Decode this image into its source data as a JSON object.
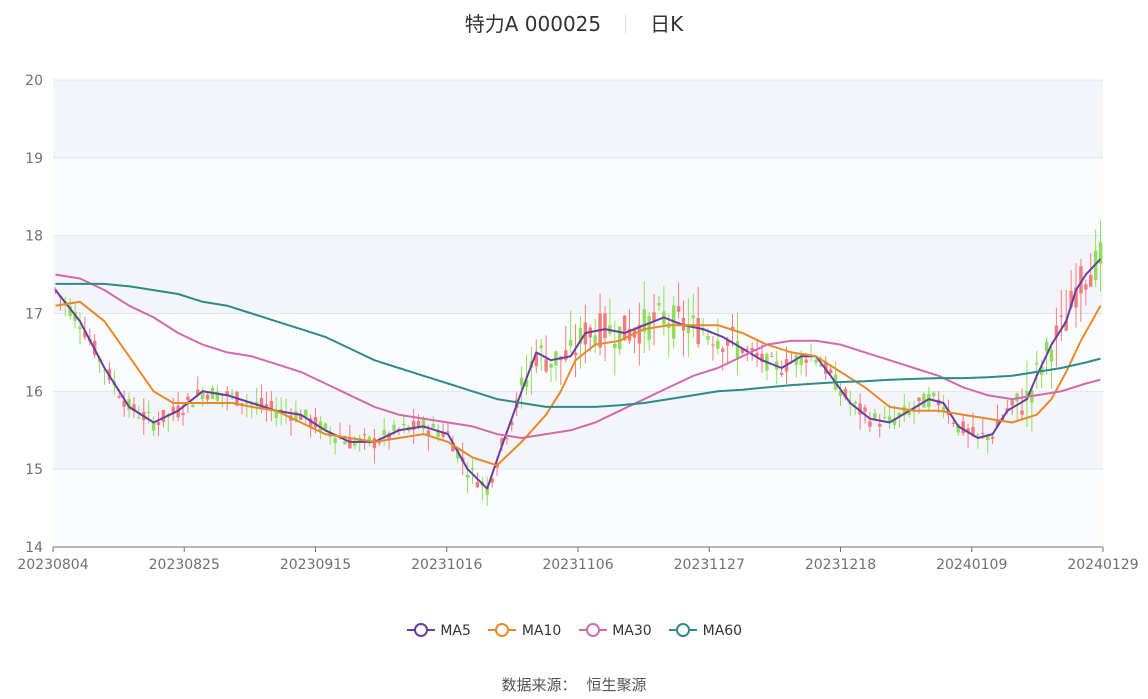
{
  "title": {
    "stock": "特力A 000025",
    "period": "日K"
  },
  "source": {
    "label": "数据来源：",
    "value": "恒生聚源"
  },
  "chart_data": {
    "type": "candlestick",
    "ylim": [
      14,
      20
    ],
    "yticks": [
      14,
      15,
      16,
      17,
      18,
      19,
      20
    ],
    "xticks": [
      "20230804",
      "20230825",
      "20230915",
      "20231016",
      "20231106",
      "20231127",
      "20231218",
      "20240109",
      "20240129"
    ],
    "up_color": "#f47c7c",
    "down_color": "#8ee05a",
    "ma_series": [
      {
        "name": "MA5",
        "color": "#6a3ea1",
        "points": [
          [
            0,
            17.3
          ],
          [
            5,
            16.9
          ],
          [
            10,
            16.3
          ],
          [
            15,
            15.8
          ],
          [
            20,
            15.6
          ],
          [
            25,
            15.75
          ],
          [
            30,
            16.0
          ],
          [
            35,
            15.95
          ],
          [
            40,
            15.85
          ],
          [
            45,
            15.75
          ],
          [
            50,
            15.7
          ],
          [
            55,
            15.5
          ],
          [
            60,
            15.35
          ],
          [
            65,
            15.35
          ],
          [
            70,
            15.5
          ],
          [
            75,
            15.55
          ],
          [
            80,
            15.45
          ],
          [
            84,
            15.0
          ],
          [
            88,
            14.75
          ],
          [
            91,
            15.3
          ],
          [
            95,
            16.0
          ],
          [
            98,
            16.5
          ],
          [
            101,
            16.4
          ],
          [
            105,
            16.45
          ],
          [
            108,
            16.75
          ],
          [
            112,
            16.8
          ],
          [
            116,
            16.75
          ],
          [
            120,
            16.85
          ],
          [
            124,
            16.95
          ],
          [
            128,
            16.85
          ],
          [
            132,
            16.8
          ],
          [
            136,
            16.7
          ],
          [
            140,
            16.55
          ],
          [
            144,
            16.4
          ],
          [
            148,
            16.3
          ],
          [
            152,
            16.45
          ],
          [
            155,
            16.45
          ],
          [
            158,
            16.2
          ],
          [
            162,
            15.85
          ],
          [
            166,
            15.65
          ],
          [
            170,
            15.6
          ],
          [
            174,
            15.75
          ],
          [
            178,
            15.9
          ],
          [
            181,
            15.85
          ],
          [
            184,
            15.55
          ],
          [
            188,
            15.4
          ],
          [
            191,
            15.45
          ],
          [
            194,
            15.75
          ],
          [
            198,
            15.9
          ],
          [
            200,
            16.2
          ],
          [
            203,
            16.6
          ],
          [
            206,
            16.9
          ],
          [
            208,
            17.3
          ],
          [
            210,
            17.5
          ],
          [
            213,
            17.7
          ]
        ]
      },
      {
        "name": "MA10",
        "color": "#e8892b",
        "points": [
          [
            0,
            17.1
          ],
          [
            5,
            17.15
          ],
          [
            10,
            16.9
          ],
          [
            15,
            16.45
          ],
          [
            20,
            16.0
          ],
          [
            24,
            15.85
          ],
          [
            28,
            15.85
          ],
          [
            32,
            15.85
          ],
          [
            36,
            15.85
          ],
          [
            40,
            15.8
          ],
          [
            45,
            15.75
          ],
          [
            50,
            15.6
          ],
          [
            55,
            15.45
          ],
          [
            60,
            15.4
          ],
          [
            65,
            15.35
          ],
          [
            70,
            15.4
          ],
          [
            75,
            15.45
          ],
          [
            80,
            15.35
          ],
          [
            85,
            15.15
          ],
          [
            90,
            15.05
          ],
          [
            95,
            15.35
          ],
          [
            100,
            15.7
          ],
          [
            103,
            16.0
          ],
          [
            106,
            16.4
          ],
          [
            110,
            16.6
          ],
          [
            115,
            16.65
          ],
          [
            120,
            16.8
          ],
          [
            125,
            16.85
          ],
          [
            130,
            16.85
          ],
          [
            135,
            16.85
          ],
          [
            140,
            16.75
          ],
          [
            145,
            16.6
          ],
          [
            150,
            16.5
          ],
          [
            155,
            16.45
          ],
          [
            160,
            16.25
          ],
          [
            165,
            16.05
          ],
          [
            170,
            15.8
          ],
          [
            175,
            15.75
          ],
          [
            180,
            15.75
          ],
          [
            185,
            15.7
          ],
          [
            190,
            15.65
          ],
          [
            195,
            15.6
          ],
          [
            200,
            15.7
          ],
          [
            203,
            15.9
          ],
          [
            206,
            16.25
          ],
          [
            209,
            16.65
          ],
          [
            213,
            17.1
          ]
        ]
      },
      {
        "name": "MA30",
        "color": "#d26aad",
        "points": [
          [
            0,
            17.5
          ],
          [
            5,
            17.45
          ],
          [
            10,
            17.3
          ],
          [
            15,
            17.1
          ],
          [
            20,
            16.95
          ],
          [
            25,
            16.75
          ],
          [
            30,
            16.6
          ],
          [
            35,
            16.5
          ],
          [
            40,
            16.45
          ],
          [
            45,
            16.35
          ],
          [
            50,
            16.25
          ],
          [
            55,
            16.1
          ],
          [
            60,
            15.95
          ],
          [
            65,
            15.8
          ],
          [
            70,
            15.7
          ],
          [
            75,
            15.65
          ],
          [
            80,
            15.6
          ],
          [
            85,
            15.55
          ],
          [
            90,
            15.45
          ],
          [
            95,
            15.4
          ],
          [
            100,
            15.45
          ],
          [
            105,
            15.5
          ],
          [
            110,
            15.6
          ],
          [
            115,
            15.75
          ],
          [
            120,
            15.9
          ],
          [
            125,
            16.05
          ],
          [
            130,
            16.2
          ],
          [
            135,
            16.3
          ],
          [
            140,
            16.45
          ],
          [
            145,
            16.6
          ],
          [
            150,
            16.65
          ],
          [
            155,
            16.65
          ],
          [
            160,
            16.6
          ],
          [
            165,
            16.5
          ],
          [
            170,
            16.4
          ],
          [
            175,
            16.3
          ],
          [
            180,
            16.2
          ],
          [
            185,
            16.05
          ],
          [
            190,
            15.95
          ],
          [
            195,
            15.9
          ],
          [
            200,
            15.95
          ],
          [
            205,
            16.0
          ],
          [
            210,
            16.1
          ],
          [
            213,
            16.15
          ]
        ]
      },
      {
        "name": "MA60",
        "color": "#2e8b8b",
        "points": [
          [
            0,
            17.38
          ],
          [
            10,
            17.38
          ],
          [
            15,
            17.35
          ],
          [
            20,
            17.3
          ],
          [
            25,
            17.25
          ],
          [
            30,
            17.15
          ],
          [
            35,
            17.1
          ],
          [
            40,
            17.0
          ],
          [
            45,
            16.9
          ],
          [
            50,
            16.8
          ],
          [
            55,
            16.7
          ],
          [
            60,
            16.55
          ],
          [
            65,
            16.4
          ],
          [
            70,
            16.3
          ],
          [
            75,
            16.2
          ],
          [
            80,
            16.1
          ],
          [
            85,
            16.0
          ],
          [
            90,
            15.9
          ],
          [
            95,
            15.85
          ],
          [
            100,
            15.8
          ],
          [
            105,
            15.8
          ],
          [
            110,
            15.8
          ],
          [
            115,
            15.82
          ],
          [
            120,
            15.85
          ],
          [
            125,
            15.9
          ],
          [
            130,
            15.95
          ],
          [
            135,
            16.0
          ],
          [
            140,
            16.02
          ],
          [
            145,
            16.05
          ],
          [
            150,
            16.08
          ],
          [
            155,
            16.1
          ],
          [
            160,
            16.12
          ],
          [
            165,
            16.13
          ],
          [
            170,
            16.15
          ],
          [
            175,
            16.16
          ],
          [
            180,
            16.17
          ],
          [
            185,
            16.17
          ],
          [
            190,
            16.18
          ],
          [
            195,
            16.2
          ],
          [
            200,
            16.25
          ],
          [
            205,
            16.3
          ],
          [
            210,
            16.37
          ],
          [
            213,
            16.42
          ]
        ]
      }
    ]
  }
}
